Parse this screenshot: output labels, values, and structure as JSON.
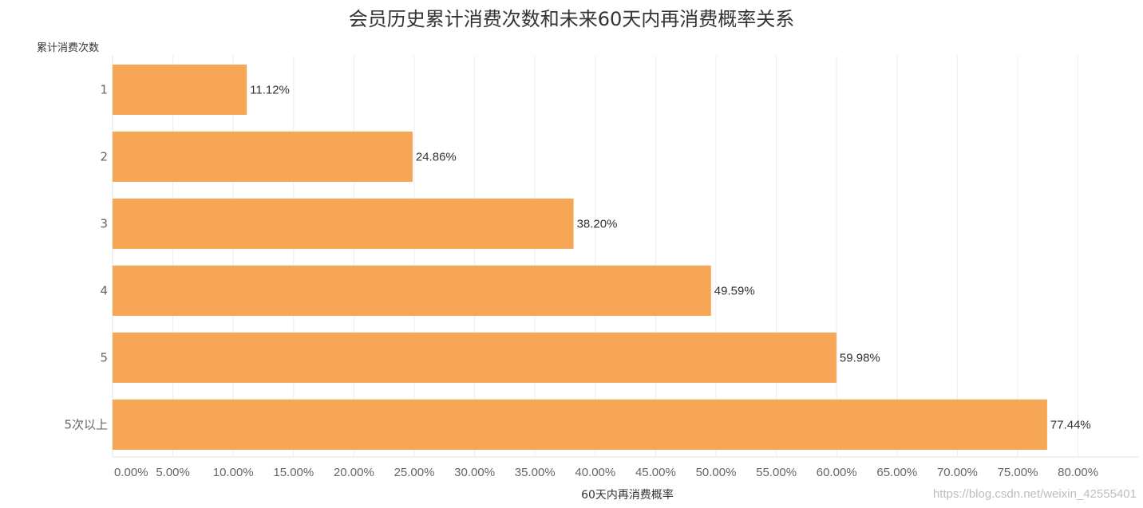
{
  "chart_data": {
    "type": "bar",
    "orientation": "horizontal",
    "title": "会员历史累计消费次数和未来60天内再消费概率关系",
    "ylabel": "累计消费次数",
    "xlabel": "60天内再消费概率",
    "categories": [
      "1",
      "2",
      "3",
      "4",
      "5",
      "5次以上"
    ],
    "values": [
      11.12,
      24.86,
      38.2,
      49.59,
      59.98,
      77.44
    ],
    "data_labels": [
      "11.12%",
      "24.86%",
      "38.20%",
      "49.59%",
      "59.98%",
      "77.44%"
    ],
    "xlim": [
      0,
      85
    ],
    "x_ticks": [
      0,
      5,
      10,
      15,
      20,
      25,
      30,
      35,
      40,
      45,
      50,
      55,
      60,
      65,
      70,
      75,
      80
    ],
    "x_tick_labels": [
      "0.00%",
      "5.00%",
      "10.00%",
      "15.00%",
      "20.00%",
      "25.00%",
      "30.00%",
      "35.00%",
      "40.00%",
      "45.00%",
      "50.00%",
      "55.00%",
      "60.00%",
      "65.00%",
      "70.00%",
      "75.00%",
      "80.00%"
    ],
    "grid": true,
    "bar_color": "#f7a656"
  },
  "watermark": "https://blog.csdn.net/weixin_42555401"
}
